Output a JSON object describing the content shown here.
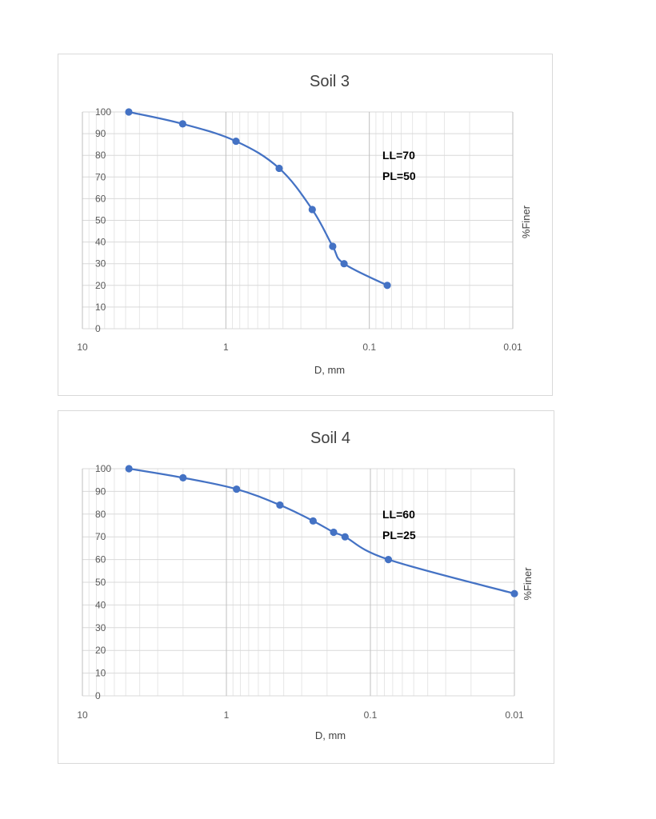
{
  "chart_data": [
    {
      "type": "line",
      "title": "Soil 3",
      "xlabel": "D, mm",
      "ylabel": "%Finer",
      "x_scale": "log",
      "x_reversed": true,
      "xlim": [
        10,
        0.01
      ],
      "ylim": [
        0,
        100
      ],
      "grid": true,
      "x_tick_labels": [
        "10",
        "1",
        "0.1",
        "0.01"
      ],
      "y_tick_labels": [
        "0",
        "10",
        "20",
        "30",
        "40",
        "50",
        "60",
        "70",
        "80",
        "90",
        "100"
      ],
      "annotations": [
        "LL=70",
        "PL=50"
      ],
      "series": [
        {
          "color": "#4472c4",
          "x": [
            4.75,
            2.0,
            0.85,
            0.425,
            0.25,
            0.18,
            0.15,
            0.075
          ],
          "y": [
            100,
            94.5,
            86.5,
            74,
            55,
            38,
            30,
            20
          ]
        }
      ]
    },
    {
      "type": "line",
      "title": "Soil 4",
      "xlabel": "D, mm",
      "ylabel": "%Finer",
      "x_scale": "log",
      "x_reversed": true,
      "xlim": [
        10,
        0.01
      ],
      "ylim": [
        0,
        100
      ],
      "grid": true,
      "x_tick_labels": [
        "10",
        "1",
        "0.1",
        "0.01"
      ],
      "y_tick_labels": [
        "0",
        "10",
        "20",
        "30",
        "40",
        "50",
        "60",
        "70",
        "80",
        "90",
        "100"
      ],
      "annotations": [
        "LL=60",
        "PL=25"
      ],
      "series": [
        {
          "color": "#4472c4",
          "x": [
            4.75,
            2.0,
            0.85,
            0.425,
            0.25,
            0.18,
            0.15,
            0.075,
            0.01
          ],
          "y": [
            100,
            96,
            91,
            84,
            77,
            72,
            70,
            60,
            45
          ]
        }
      ]
    }
  ]
}
